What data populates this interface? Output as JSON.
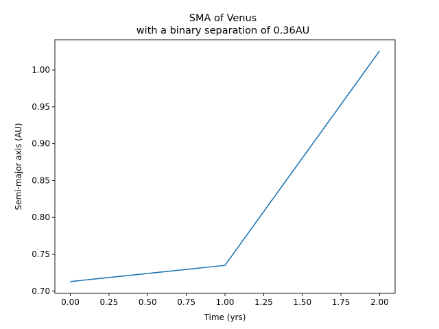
{
  "chart_data": {
    "type": "line",
    "title_line1": "SMA of Venus",
    "title_line2": "with a binary separation of 0.36AU",
    "xlabel": "Time (yrs)",
    "ylabel": "Semi-major axis (AU)",
    "xlim": [
      -0.1,
      2.1
    ],
    "ylim": [
      0.697,
      1.041
    ],
    "x_ticks": [
      0.0,
      0.25,
      0.5,
      0.75,
      1.0,
      1.25,
      1.5,
      1.75,
      2.0
    ],
    "x_tick_labels": [
      "0.00",
      "0.25",
      "0.50",
      "0.75",
      "1.00",
      "1.25",
      "1.50",
      "1.75",
      "2.00"
    ],
    "y_ticks": [
      0.7,
      0.75,
      0.8,
      0.85,
      0.9,
      0.95,
      1.0
    ],
    "y_tick_labels": [
      "0.70",
      "0.75",
      "0.80",
      "0.85",
      "0.90",
      "0.95",
      "1.00"
    ],
    "grid": false,
    "series": [
      {
        "color": "#1f77b4",
        "x": [
          0,
          1,
          2
        ],
        "y": [
          0.713,
          0.735,
          1.026
        ]
      }
    ]
  }
}
